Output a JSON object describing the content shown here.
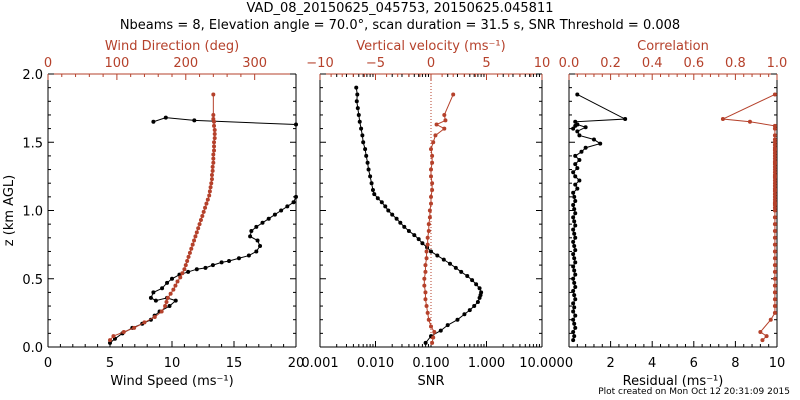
{
  "title_line1": "VAD_08_20150625_045753, 20150625.045811",
  "title_line2": "Nbeams = 8, Elevation angle = 70.0°, scan duration = 31.5 s, SNR Threshold = 0.008",
  "footer": "Plot created on Mon Oct 12 20:31:09 2015",
  "colors": {
    "primary": "#000000",
    "secondary": "#b5412b",
    "background": "#ffffff"
  },
  "chart_data": [
    {
      "type": "line",
      "ylabel": "z (km AGL)",
      "ylim": [
        0,
        2
      ],
      "yticks": [
        "0.0",
        "0.5",
        "1.0",
        "1.5",
        "2.0"
      ],
      "bottom_axis": {
        "label": "Wind Speed (ms⁻¹)",
        "lim": [
          0,
          20
        ],
        "ticks": [
          "0",
          "5",
          "10",
          "15",
          "20"
        ]
      },
      "top_axis": {
        "label": "Wind Direction (deg)",
        "lim": [
          0,
          360
        ],
        "ticks": [
          "0",
          "100",
          "200",
          "300"
        ]
      },
      "series": [
        {
          "name": "Wind Speed",
          "axis": "bottom",
          "color": "#000000",
          "x": [
            5.0,
            5.4,
            6.0,
            6.8,
            7.6,
            8.3,
            8.6,
            9.0,
            9.8,
            10.3,
            9.6,
            8.7,
            8.3,
            8.5,
            9.2,
            9.6,
            10.0,
            10.6,
            11.3,
            12.0,
            12.7,
            13.3,
            14.0,
            14.6,
            15.4,
            16.2,
            16.8,
            17.1,
            16.9,
            16.3,
            16.4,
            16.8,
            17.3,
            17.8,
            18.3,
            18.8,
            19.3,
            19.8,
            20.2
          ],
          "y": [
            0.03,
            0.06,
            0.1,
            0.14,
            0.17,
            0.2,
            0.23,
            0.26,
            0.3,
            0.34,
            0.36,
            0.34,
            0.36,
            0.4,
            0.43,
            0.47,
            0.5,
            0.53,
            0.55,
            0.57,
            0.58,
            0.6,
            0.62,
            0.63,
            0.65,
            0.67,
            0.7,
            0.74,
            0.78,
            0.81,
            0.85,
            0.88,
            0.91,
            0.94,
            0.97,
            1.0,
            1.03,
            1.06,
            1.1
          ]
        },
        {
          "name": "Wind Speed (upper)",
          "axis": "bottom",
          "color": "#000000",
          "x": [
            8.5,
            9.5,
            11.8,
            20.5
          ],
          "y": [
            1.65,
            1.68,
            1.66,
            1.63
          ]
        },
        {
          "name": "Wind Direction",
          "axis": "top",
          "color": "#b5412b",
          "x": [
            90,
            95,
            110,
            125,
            140,
            155,
            165,
            170,
            172,
            174,
            178,
            182,
            185,
            188,
            192,
            195,
            198,
            200,
            202,
            204,
            206,
            208,
            210,
            212,
            214,
            216,
            218,
            220,
            222,
            224,
            226,
            228,
            230,
            232,
            234,
            235,
            236,
            237,
            238,
            238,
            239,
            239,
            240,
            240,
            240,
            241,
            241,
            241,
            242,
            242,
            242,
            241,
            241,
            240,
            240,
            240
          ],
          "y": [
            0.05,
            0.08,
            0.11,
            0.14,
            0.18,
            0.22,
            0.26,
            0.3,
            0.33,
            0.36,
            0.39,
            0.42,
            0.45,
            0.48,
            0.51,
            0.54,
            0.57,
            0.6,
            0.63,
            0.66,
            0.69,
            0.72,
            0.75,
            0.78,
            0.81,
            0.84,
            0.87,
            0.9,
            0.93,
            0.96,
            0.99,
            1.02,
            1.05,
            1.08,
            1.11,
            1.14,
            1.17,
            1.2,
            1.23,
            1.26,
            1.29,
            1.32,
            1.35,
            1.38,
            1.41,
            1.44,
            1.47,
            1.5,
            1.53,
            1.56,
            1.59,
            1.62,
            1.65,
            1.67,
            1.7,
            1.85
          ]
        }
      ]
    },
    {
      "type": "line",
      "ylim": [
        0,
        2
      ],
      "bottom_axis": {
        "label": "SNR",
        "scale": "log",
        "lim": [
          0.001,
          10
        ],
        "ticks": [
          "0.001",
          "0.010",
          "0.100",
          "1.000",
          "10.000"
        ]
      },
      "top_axis": {
        "label": "Vertical velocity (ms⁻¹)",
        "lim": [
          -10,
          10
        ],
        "ticks": [
          "−10",
          "−5",
          "0",
          "5",
          "10"
        ]
      },
      "reference_line": {
        "axis": "top",
        "x": 0,
        "style": "dotted",
        "color": "#b5412b"
      },
      "series": [
        {
          "name": "SNR",
          "axis": "bottom",
          "color": "#000000",
          "log": true,
          "x": [
            0.08,
            0.1,
            0.15,
            0.2,
            0.3,
            0.4,
            0.5,
            0.6,
            0.7,
            0.75,
            0.78,
            0.8,
            0.75,
            0.65,
            0.55,
            0.45,
            0.35,
            0.28,
            0.22,
            0.17,
            0.13,
            0.1,
            0.085,
            0.07,
            0.06,
            0.05,
            0.04,
            0.033,
            0.028,
            0.024,
            0.02,
            0.017,
            0.015,
            0.013,
            0.011,
            0.0095,
            0.009,
            0.0085,
            0.008,
            0.0075,
            0.0072,
            0.0068,
            0.0065,
            0.006,
            0.0058,
            0.0055,
            0.0052,
            0.005,
            0.0048,
            0.0046,
            0.0047,
            0.0045
          ],
          "y": [
            0.03,
            0.08,
            0.12,
            0.16,
            0.2,
            0.24,
            0.27,
            0.3,
            0.33,
            0.36,
            0.38,
            0.4,
            0.43,
            0.46,
            0.49,
            0.52,
            0.55,
            0.58,
            0.61,
            0.64,
            0.67,
            0.7,
            0.73,
            0.76,
            0.79,
            0.82,
            0.85,
            0.88,
            0.91,
            0.94,
            0.97,
            1.0,
            1.03,
            1.06,
            1.09,
            1.12,
            1.15,
            1.2,
            1.25,
            1.3,
            1.35,
            1.4,
            1.45,
            1.5,
            1.55,
            1.6,
            1.65,
            1.7,
            1.75,
            1.8,
            1.85,
            1.9
          ]
        },
        {
          "name": "Vertical velocity",
          "axis": "top",
          "color": "#b5412b",
          "x": [
            0.1,
            0.2,
            0.3,
            0.0,
            -0.2,
            -0.3,
            -0.4,
            -0.5,
            -0.5,
            -0.6,
            -0.6,
            -0.5,
            -0.5,
            -0.4,
            -0.4,
            -0.3,
            -0.3,
            -0.2,
            -0.2,
            -0.1,
            -0.1,
            0.0,
            0.0,
            0.1,
            0.1,
            0.0,
            0.0,
            0.1,
            0.1,
            0.0,
            0.2,
            0.4,
            1.2,
            0.5,
            1.3,
            1.2,
            2.0
          ],
          "y": [
            0.03,
            0.07,
            0.11,
            0.15,
            0.2,
            0.25,
            0.3,
            0.35,
            0.4,
            0.45,
            0.5,
            0.55,
            0.6,
            0.65,
            0.7,
            0.75,
            0.8,
            0.85,
            0.9,
            0.95,
            1.0,
            1.05,
            1.1,
            1.15,
            1.2,
            1.25,
            1.3,
            1.35,
            1.4,
            1.45,
            1.5,
            1.55,
            1.6,
            1.63,
            1.66,
            1.7,
            1.85
          ]
        }
      ]
    },
    {
      "type": "line",
      "ylim": [
        0,
        2
      ],
      "bottom_axis": {
        "label": "Residual (ms⁻¹)",
        "lim": [
          0,
          10
        ],
        "ticks": [
          "0",
          "2",
          "4",
          "6",
          "8",
          "10"
        ]
      },
      "top_axis": {
        "label": "Correlation",
        "lim": [
          0,
          1
        ],
        "ticks": [
          "0.0",
          "0.2",
          "0.4",
          "0.6",
          "0.8",
          "1.0"
        ]
      },
      "series": [
        {
          "name": "Residual",
          "axis": "bottom",
          "color": "#000000",
          "x": [
            0.2,
            0.25,
            0.2,
            0.3,
            0.25,
            0.2,
            0.3,
            0.2,
            0.25,
            0.2,
            0.3,
            0.25,
            0.2,
            0.3,
            0.25,
            0.2,
            0.3,
            0.25,
            0.2,
            0.3,
            0.25,
            0.2,
            0.3,
            0.25,
            0.2,
            0.3,
            0.25,
            0.2,
            0.3,
            0.25,
            0.2,
            0.3,
            0.25,
            0.2,
            0.3,
            0.25,
            0.2,
            0.4,
            0.3,
            0.5,
            0.3,
            0.2,
            0.4,
            0.3,
            0.5,
            0.3,
            0.6,
            0.8,
            1.5,
            1.2,
            0.5,
            0.4,
            0.8,
            0.4,
            0.3,
            0.2,
            0.4,
            0.3,
            2.7,
            0.4
          ],
          "y": [
            0.05,
            0.08,
            0.11,
            0.14,
            0.17,
            0.2,
            0.23,
            0.26,
            0.29,
            0.32,
            0.35,
            0.38,
            0.41,
            0.44,
            0.47,
            0.5,
            0.53,
            0.56,
            0.59,
            0.62,
            0.65,
            0.68,
            0.71,
            0.74,
            0.77,
            0.8,
            0.83,
            0.86,
            0.89,
            0.92,
            0.95,
            0.98,
            1.01,
            1.04,
            1.07,
            1.1,
            1.13,
            1.16,
            1.19,
            1.22,
            1.25,
            1.28,
            1.31,
            1.34,
            1.37,
            1.4,
            1.43,
            1.46,
            1.49,
            1.52,
            1.55,
            1.58,
            1.61,
            1.63,
            1.62,
            1.6,
            1.63,
            1.65,
            1.67,
            1.85
          ]
        },
        {
          "name": "Correlation",
          "axis": "top",
          "color": "#b5412b",
          "x": [
            0.93,
            0.95,
            0.92,
            0.97,
            0.99,
            0.99,
            0.99,
            0.99,
            0.99,
            0.99,
            0.99,
            0.99,
            0.99,
            0.99,
            0.99,
            0.99,
            0.99,
            0.99,
            0.99,
            0.99,
            0.99,
            0.99,
            0.99,
            0.99,
            0.99,
            0.99,
            0.99,
            0.99,
            0.99,
            0.99,
            0.99,
            0.99,
            0.99,
            0.99,
            0.99,
            0.99,
            0.99,
            0.99,
            0.99,
            0.99,
            0.99,
            0.99,
            0.99,
            0.99,
            0.99,
            0.99,
            0.99,
            0.99,
            0.99,
            0.99,
            0.99,
            0.99,
            0.99,
            0.99,
            0.87,
            0.74,
            0.99
          ],
          "y": [
            0.05,
            0.08,
            0.11,
            0.2,
            0.25,
            0.3,
            0.35,
            0.4,
            0.45,
            0.5,
            0.55,
            0.6,
            0.65,
            0.7,
            0.75,
            0.8,
            0.85,
            0.9,
            0.95,
            1.0,
            1.05,
            1.1,
            1.15,
            1.2,
            1.25,
            1.3,
            1.35,
            1.4,
            1.45,
            1.5,
            1.55,
            1.6,
            1.02,
            1.04,
            1.06,
            1.08,
            1.12,
            1.14,
            1.16,
            1.18,
            1.22,
            1.24,
            1.26,
            1.28,
            1.32,
            1.34,
            1.36,
            1.38,
            1.42,
            1.44,
            1.46,
            1.48,
            1.52,
            1.62,
            1.65,
            1.67,
            1.85
          ]
        }
      ]
    }
  ]
}
